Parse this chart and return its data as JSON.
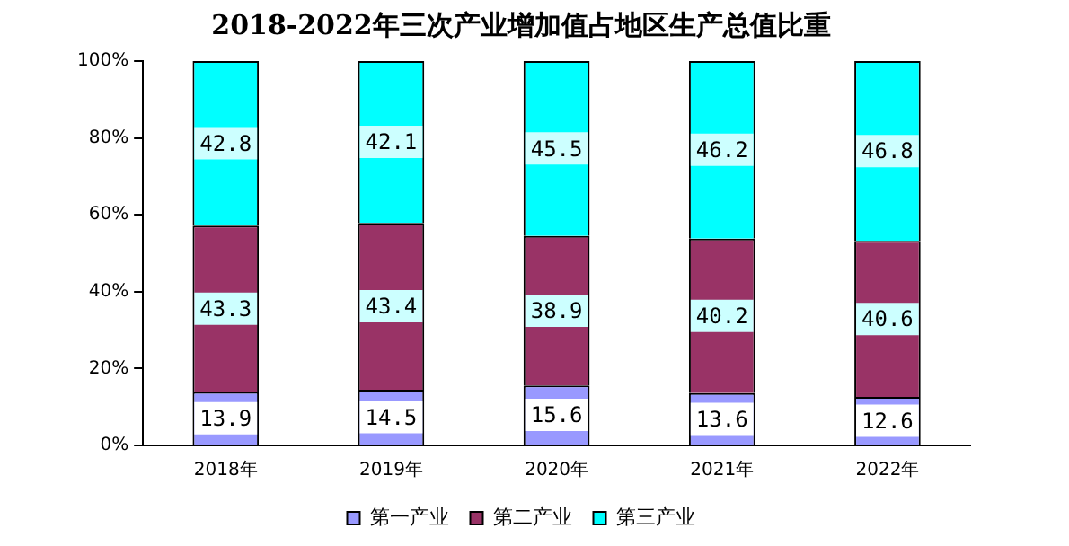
{
  "chart_data": {
    "type": "bar",
    "title": "2018-2022年三次产业增加值占地区生产总值比重",
    "categories": [
      "2018年",
      "2019年",
      "2020年",
      "2021年",
      "2022年"
    ],
    "series": [
      {
        "name": "第一产业",
        "color": "#9999ff",
        "values": [
          13.9,
          14.5,
          15.6,
          13.6,
          12.6
        ]
      },
      {
        "name": "第二产业",
        "color": "#993366",
        "values": [
          43.3,
          43.4,
          38.9,
          40.2,
          40.6
        ]
      },
      {
        "name": "第三产业",
        "color": "#00ffff",
        "values": [
          42.8,
          42.1,
          45.5,
          46.2,
          46.8
        ]
      }
    ],
    "stacked": true,
    "ylim": [
      0,
      100
    ],
    "yticks": [
      {
        "value": 0,
        "label": "0%"
      },
      {
        "value": 20,
        "label": "20%"
      },
      {
        "value": 40,
        "label": "40%"
      },
      {
        "value": 60,
        "label": "60%"
      },
      {
        "value": 80,
        "label": "80%"
      },
      {
        "value": 100,
        "label": "100%"
      }
    ],
    "grid": false,
    "legend": "bottom",
    "data_labels": true
  }
}
